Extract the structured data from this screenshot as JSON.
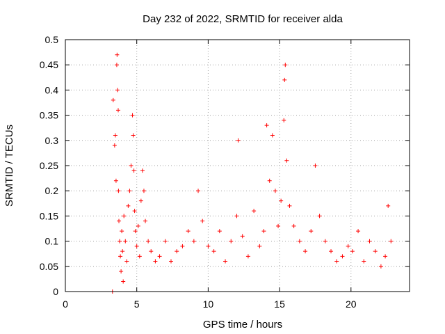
{
  "chart_data": {
    "type": "scatter",
    "title": "Day 232 of 2022, SRMTID for receiver alda",
    "xlabel": "GPS time / hours",
    "ylabel": "SRMTID / TECUs",
    "xlim": [
      0,
      24.1
    ],
    "ylim": [
      0,
      0.5
    ],
    "xticks": [
      0,
      5,
      10,
      15,
      20
    ],
    "yticks": [
      0,
      0.05,
      0.1,
      0.15,
      0.2,
      0.25,
      0.3,
      0.35,
      0.4,
      0.45,
      0.5
    ],
    "grid": true,
    "marker": "+",
    "series": [
      {
        "name": "SRMTID",
        "color": "#ff0000",
        "x": [
          3.3,
          3.35,
          3.45,
          3.5,
          3.55,
          3.6,
          3.62,
          3.65,
          3.7,
          3.72,
          3.75,
          3.8,
          3.85,
          3.9,
          3.95,
          4.0,
          4.05,
          4.1,
          4.2,
          4.3,
          4.4,
          4.5,
          4.6,
          4.7,
          4.75,
          4.8,
          4.85,
          4.9,
          5.0,
          5.1,
          5.2,
          5.3,
          5.4,
          5.5,
          5.6,
          5.8,
          6.0,
          6.3,
          6.6,
          7.0,
          7.4,
          7.8,
          8.2,
          8.6,
          9.0,
          9.3,
          9.6,
          10.0,
          10.4,
          10.8,
          11.2,
          11.6,
          12.0,
          12.1,
          12.4,
          12.8,
          13.2,
          13.6,
          13.9,
          14.1,
          14.3,
          14.5,
          14.7,
          14.9,
          15.1,
          15.3,
          15.35,
          15.4,
          15.5,
          15.7,
          16.0,
          16.4,
          16.8,
          17.2,
          17.5,
          17.8,
          18.2,
          18.6,
          19.0,
          19.4,
          19.8,
          20.1,
          20.5,
          20.9,
          21.3,
          21.7,
          22.1,
          22.4,
          22.6,
          22.8
        ],
        "y": [
          0.0,
          0.38,
          0.29,
          0.31,
          0.22,
          0.45,
          0.47,
          0.4,
          0.36,
          0.2,
          0.14,
          0.1,
          0.07,
          0.04,
          0.12,
          0.08,
          0.02,
          0.15,
          0.1,
          0.06,
          0.17,
          0.2,
          0.25,
          0.35,
          0.31,
          0.24,
          0.16,
          0.12,
          0.09,
          0.13,
          0.07,
          0.18,
          0.24,
          0.2,
          0.14,
          0.1,
          0.08,
          0.06,
          0.07,
          0.1,
          0.06,
          0.08,
          0.09,
          0.12,
          0.1,
          0.2,
          0.14,
          0.09,
          0.08,
          0.12,
          0.06,
          0.1,
          0.15,
          0.3,
          0.11,
          0.07,
          0.16,
          0.09,
          0.12,
          0.33,
          0.22,
          0.31,
          0.2,
          0.13,
          0.18,
          0.34,
          0.42,
          0.45,
          0.26,
          0.17,
          0.13,
          0.1,
          0.08,
          0.12,
          0.25,
          0.15,
          0.1,
          0.08,
          0.06,
          0.07,
          0.09,
          0.08,
          0.12,
          0.06,
          0.1,
          0.08,
          0.05,
          0.07,
          0.17,
          0.1
        ]
      }
    ]
  }
}
